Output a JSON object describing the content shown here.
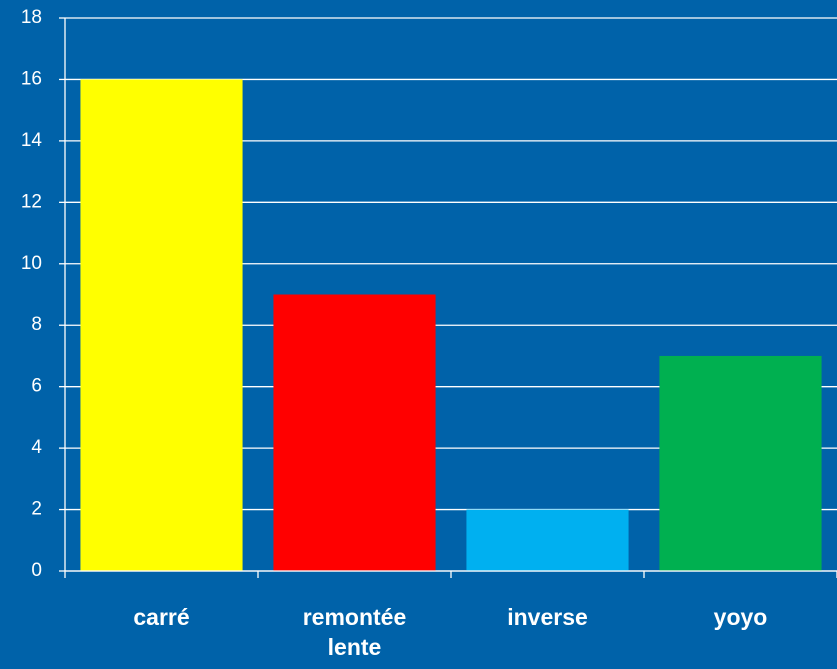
{
  "chart_data": {
    "type": "bar",
    "categories": [
      "carré",
      "remontée lente",
      "inverse",
      "yoyo"
    ],
    "values": [
      16,
      9,
      2,
      7
    ],
    "colors": [
      "#ffff00",
      "#ff0000",
      "#00b0f0",
      "#00b050"
    ],
    "ylim": [
      0,
      18
    ],
    "yticks": [
      0,
      2,
      4,
      6,
      8,
      10,
      12,
      14,
      16,
      18
    ],
    "grid": true
  }
}
